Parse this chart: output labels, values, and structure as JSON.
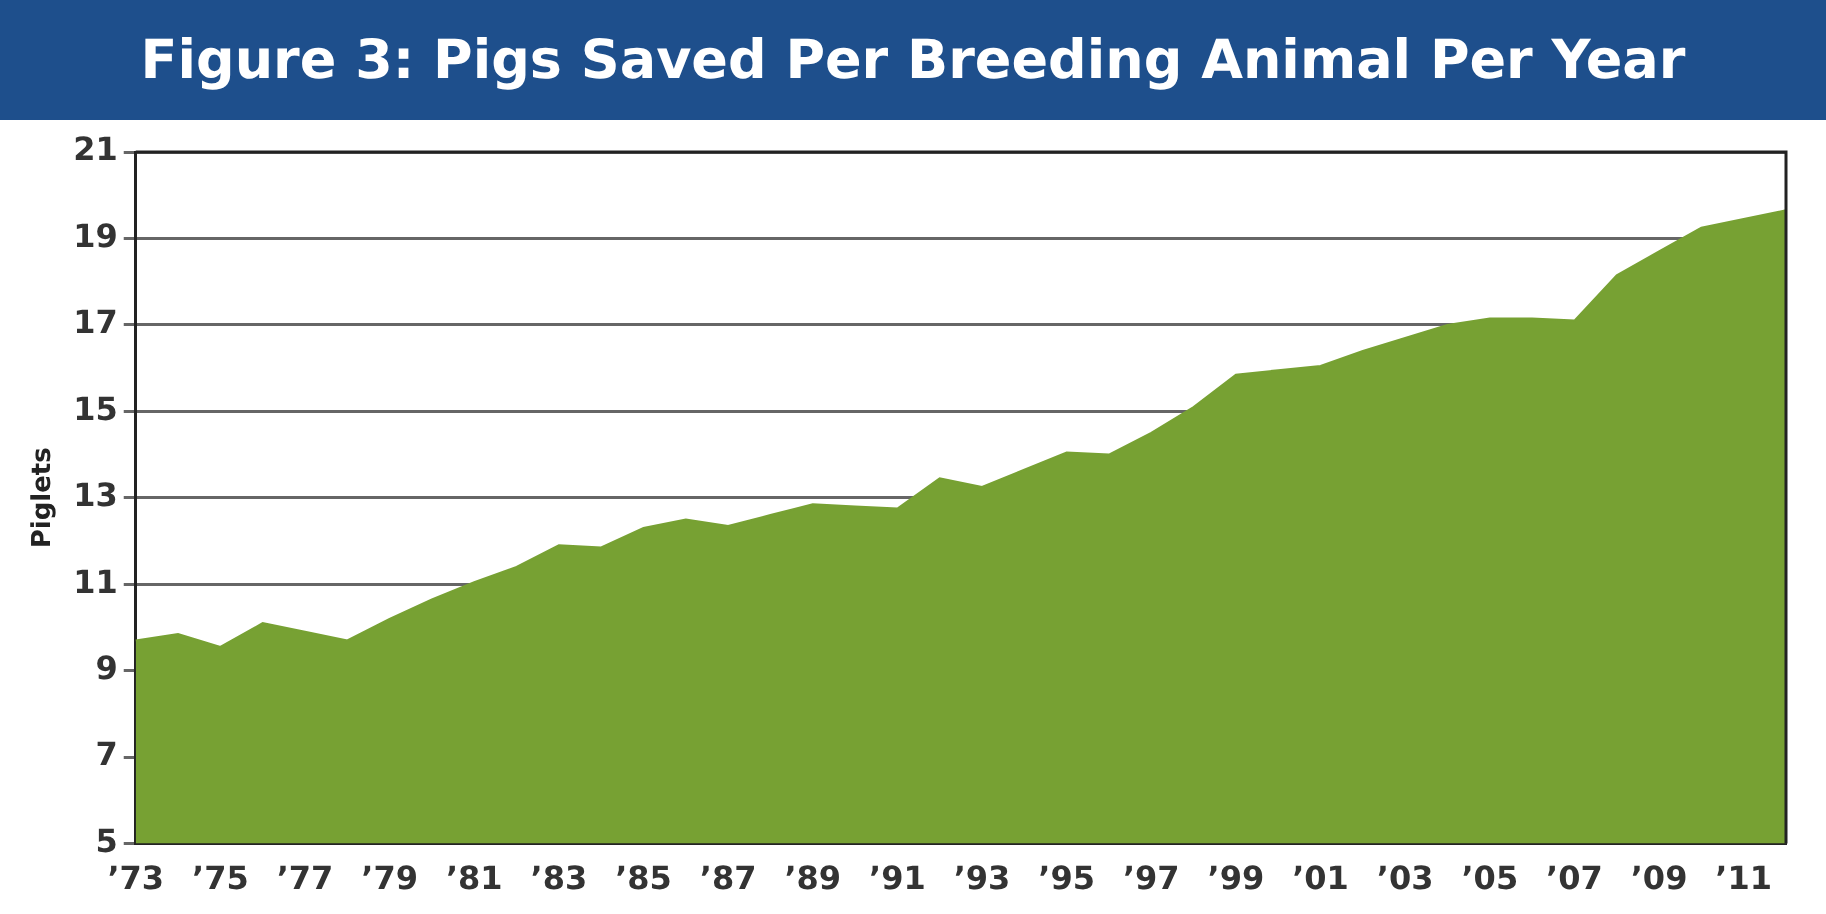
{
  "chart_data": {
    "type": "area",
    "title": "Figure 3: Pigs Saved Per Breeding Animal Per Year",
    "ylabel": "Piglets",
    "categories": [
      "’73",
      null,
      "’75",
      null,
      "’77",
      null,
      "’79",
      null,
      "’81",
      null,
      "’83",
      null,
      "’85",
      null,
      "’87",
      null,
      "’89",
      null,
      "’91",
      null,
      "’93",
      null,
      "’95",
      null,
      "’97",
      null,
      "’99",
      null,
      "’01",
      null,
      "’03",
      null,
      "’05",
      null,
      "’07",
      null,
      "’09",
      null,
      "’11",
      null
    ],
    "values": [
      9.7,
      9.85,
      9.55,
      10.1,
      9.9,
      9.7,
      10.2,
      10.65,
      11.05,
      11.4,
      11.9,
      11.85,
      12.3,
      12.5,
      12.35,
      12.6,
      12.85,
      12.8,
      12.75,
      13.45,
      13.25,
      13.65,
      14.05,
      14.0,
      14.5,
      15.1,
      15.85,
      15.95,
      16.05,
      16.4,
      16.7,
      17.0,
      17.15,
      17.15,
      17.1,
      18.15,
      18.7,
      19.25,
      19.45,
      19.65
    ],
    "color": "#77a133",
    "ylim": [
      5,
      21
    ],
    "yticks": [
      5,
      7,
      9,
      11,
      13,
      15,
      17,
      19,
      21
    ],
    "grid": "y",
    "legend": false
  }
}
